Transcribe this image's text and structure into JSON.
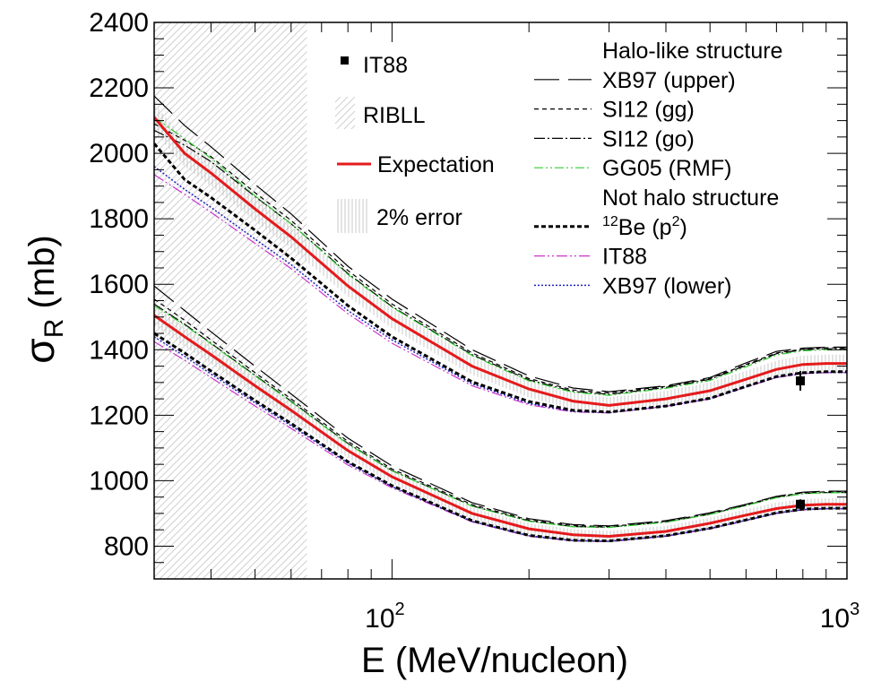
{
  "chart_data": {
    "type": "line",
    "xscale": "log",
    "xlabel": "E (MeV/nucleon)",
    "ylabel": {
      "main": "σ",
      "sub": "R",
      "unit": " (mb)"
    },
    "xlim": [
      30,
      1000
    ],
    "ylim": [
      700,
      2400
    ],
    "yticks": [
      800,
      1000,
      1200,
      1400,
      1600,
      1800,
      2000,
      2200,
      2400
    ],
    "xticks_major": [
      {
        "value": 100,
        "base": "10",
        "exp": "2"
      },
      {
        "value": 1000,
        "base": "10",
        "exp": "3"
      }
    ],
    "ribll_band": {
      "xmin": 30,
      "xmax": 65
    },
    "legend_left": [
      {
        "key": "it88_data",
        "label": "IT88"
      },
      {
        "key": "ribll",
        "label": "RIBLL"
      },
      {
        "key": "expectation",
        "label": "Expectation"
      },
      {
        "key": "error2",
        "label": "2% error"
      }
    ],
    "legend_right": [
      {
        "key": "header_halo",
        "label": "Halo-like structure",
        "header": true
      },
      {
        "key": "xb97_upper",
        "label": "XB97 (upper)"
      },
      {
        "key": "si12_gg",
        "label": "SI12 (gg)"
      },
      {
        "key": "si12_go",
        "label": "SI12 (go)"
      },
      {
        "key": "gg05_rmf",
        "label": "GG05 (RMF)"
      },
      {
        "key": "header_nothalo",
        "label": "Not halo structure",
        "header": true
      },
      {
        "key": "be12_p2",
        "label_sup": "12",
        "label_main": "Be (p",
        "label_sup2": "2",
        "label_end": ")"
      },
      {
        "key": "it88_model",
        "label": "IT88"
      },
      {
        "key": "xb97_lower",
        "label": "XB97 (lower)"
      }
    ],
    "styles": {
      "expectation": {
        "color": "#e41a1c",
        "dash": "",
        "width": 3
      },
      "xb97_upper": {
        "color": "#000000",
        "dash": "28,10",
        "width": 1.2
      },
      "si12_gg": {
        "color": "#000000",
        "dash": "5,4",
        "width": 1.2
      },
      "si12_go": {
        "color": "#000000",
        "dash": "12,3,2,3",
        "width": 1.2
      },
      "gg05_rmf": {
        "color": "#33cc33",
        "dash": "10,3,2,3,2,3",
        "width": 1.2
      },
      "be12_p2": {
        "color": "#000000",
        "dash": "5,3",
        "width": 3
      },
      "it88_model": {
        "color": "#cc33cc",
        "dash": "12,3,2,3,2,3",
        "width": 1.2
      },
      "xb97_lower": {
        "color": "#2222bb",
        "dash": "2,2",
        "width": 1.5
      },
      "error_band": {
        "color": "#bbbbbb"
      },
      "ribll_hatch": {
        "color": "#d0d0d0"
      }
    },
    "energies": [
      30,
      35,
      40,
      50,
      60,
      80,
      100,
      150,
      200,
      250,
      300,
      400,
      500,
      600,
      700,
      800,
      900,
      1000
    ],
    "upper_group": {
      "expectation": [
        2110,
        2000,
        1940,
        1830,
        1745,
        1595,
        1495,
        1350,
        1280,
        1243,
        1230,
        1250,
        1275,
        1310,
        1340,
        1355,
        1358,
        1358
      ],
      "xb97_upper": [
        2175,
        2085,
        2020,
        1905,
        1815,
        1655,
        1555,
        1400,
        1320,
        1283,
        1272,
        1290,
        1315,
        1360,
        1395,
        1405,
        1408,
        1408
      ],
      "si12_gg": [
        2090,
        2040,
        1990,
        1880,
        1795,
        1642,
        1540,
        1390,
        1312,
        1277,
        1268,
        1288,
        1312,
        1355,
        1390,
        1402,
        1406,
        1406
      ],
      "si12_go": [
        2070,
        2025,
        1975,
        1868,
        1785,
        1633,
        1532,
        1385,
        1308,
        1273,
        1264,
        1285,
        1310,
        1352,
        1388,
        1400,
        1403,
        1403
      ],
      "gg05_rmf": [
        2110,
        2045,
        1985,
        1870,
        1785,
        1630,
        1530,
        1382,
        1305,
        1270,
        1261,
        1282,
        1306,
        1348,
        1384,
        1397,
        1400,
        1400
      ],
      "be12_p2": [
        2030,
        1920,
        1865,
        1765,
        1680,
        1535,
        1440,
        1302,
        1242,
        1215,
        1210,
        1228,
        1252,
        1288,
        1318,
        1330,
        1333,
        1333
      ],
      "it88_model": [
        1935,
        1875,
        1820,
        1725,
        1648,
        1510,
        1420,
        1290,
        1232,
        1210,
        1207,
        1227,
        1250,
        1286,
        1315,
        1327,
        1330,
        1330
      ],
      "xb97_lower": [
        1960,
        1890,
        1835,
        1738,
        1660,
        1520,
        1430,
        1296,
        1236,
        1212,
        1208,
        1228,
        1251,
        1287,
        1316,
        1328,
        1331,
        1331
      ]
    },
    "lower_group": {
      "expectation": [
        1505,
        1440,
        1385,
        1290,
        1215,
        1092,
        1012,
        900,
        853,
        835,
        830,
        845,
        870,
        895,
        915,
        925,
        928,
        928
      ],
      "xb97_upper": [
        1595,
        1520,
        1455,
        1350,
        1265,
        1130,
        1045,
        933,
        884,
        866,
        862,
        878,
        902,
        928,
        952,
        965,
        968,
        968
      ],
      "si12_gg": [
        1555,
        1490,
        1430,
        1330,
        1250,
        1120,
        1036,
        927,
        880,
        863,
        860,
        876,
        900,
        927,
        951,
        963,
        966,
        966
      ],
      "si12_go": [
        1540,
        1478,
        1420,
        1322,
        1243,
        1114,
        1031,
        923,
        877,
        860,
        858,
        874,
        898,
        925,
        949,
        961,
        964,
        964
      ],
      "gg05_rmf": [
        1535,
        1475,
        1418,
        1320,
        1241,
        1112,
        1030,
        922,
        876,
        859,
        857,
        873,
        897,
        924,
        948,
        960,
        963,
        963
      ],
      "be12_p2": [
        1450,
        1390,
        1335,
        1245,
        1175,
        1058,
        985,
        878,
        833,
        818,
        816,
        832,
        855,
        880,
        902,
        913,
        916,
        916
      ],
      "it88_model": [
        1425,
        1368,
        1315,
        1228,
        1160,
        1048,
        978,
        874,
        830,
        816,
        814,
        830,
        853,
        878,
        900,
        911,
        914,
        914
      ],
      "xb97_lower": [
        1440,
        1380,
        1326,
        1238,
        1168,
        1054,
        982,
        876,
        832,
        817,
        815,
        831,
        854,
        879,
        901,
        912,
        915,
        915
      ]
    },
    "it88_points": [
      {
        "x": 790,
        "y": 1305,
        "err": 30
      },
      {
        "x": 790,
        "y": 928,
        "err": 15
      }
    ]
  }
}
